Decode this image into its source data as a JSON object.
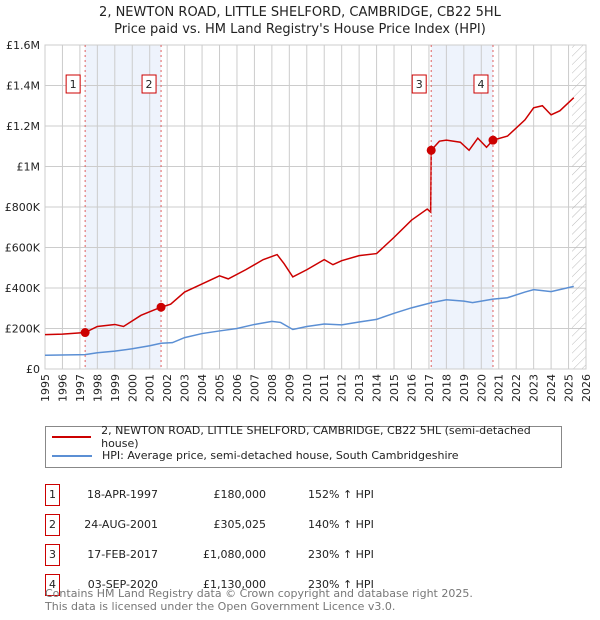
{
  "title": [
    "2, NEWTON ROAD, LITTLE SHELFORD, CAMBRIDGE, CB22 5HL",
    "Price paid vs. HM Land Registry's House Price Index (HPI)"
  ],
  "chart_data": {
    "type": "line",
    "xlim": [
      1995,
      2026
    ],
    "ylim": [
      0,
      1600000
    ],
    "x_ticks": [
      "1995",
      "1996",
      "1997",
      "1998",
      "1999",
      "2000",
      "2001",
      "2002",
      "2003",
      "2004",
      "2005",
      "2006",
      "2007",
      "2008",
      "2009",
      "2010",
      "2011",
      "2012",
      "2013",
      "2014",
      "2015",
      "2016",
      "2017",
      "2018",
      "2019",
      "2020",
      "2021",
      "2022",
      "2023",
      "2024",
      "2025",
      "2026"
    ],
    "y_ticks": [
      {
        "v": 0,
        "label": "£0"
      },
      {
        "v": 200000,
        "label": "£200K"
      },
      {
        "v": 400000,
        "label": "£400K"
      },
      {
        "v": 600000,
        "label": "£600K"
      },
      {
        "v": 800000,
        "label": "£800K"
      },
      {
        "v": 1000000,
        "label": "£1M"
      },
      {
        "v": 1200000,
        "label": "£1.2M"
      },
      {
        "v": 1400000,
        "label": "£1.4M"
      },
      {
        "v": 1600000,
        "label": "£1.6M"
      }
    ],
    "series": [
      {
        "name": "2, NEWTON ROAD, LITTLE SHELFORD, CAMBRIDGE, CB22 5HL (semi-detached house)",
        "color": "#cc0000",
        "points": [
          [
            1995,
            170000
          ],
          [
            1996,
            172000
          ],
          [
            1997.3,
            180000
          ],
          [
            1998,
            210000
          ],
          [
            1999,
            220000
          ],
          [
            1999.5,
            210000
          ],
          [
            2000.5,
            265000
          ],
          [
            2001.2,
            290000
          ],
          [
            2001.65,
            305025
          ],
          [
            2002.2,
            320000
          ],
          [
            2003,
            380000
          ],
          [
            2004,
            420000
          ],
          [
            2005,
            460000
          ],
          [
            2005.5,
            445000
          ],
          [
            2006.5,
            490000
          ],
          [
            2007.5,
            540000
          ],
          [
            2008.3,
            565000
          ],
          [
            2008.7,
            520000
          ],
          [
            2009.2,
            455000
          ],
          [
            2010,
            490000
          ],
          [
            2011,
            540000
          ],
          [
            2011.5,
            515000
          ],
          [
            2012,
            535000
          ],
          [
            2013,
            560000
          ],
          [
            2014,
            570000
          ],
          [
            2015,
            650000
          ],
          [
            2016,
            735000
          ],
          [
            2016.9,
            790000
          ],
          [
            2017.1,
            775000
          ],
          [
            2017.13,
            1080000
          ],
          [
            2017.6,
            1125000
          ],
          [
            2018,
            1130000
          ],
          [
            2018.8,
            1120000
          ],
          [
            2019.3,
            1080000
          ],
          [
            2019.8,
            1140000
          ],
          [
            2020.3,
            1095000
          ],
          [
            2020.67,
            1130000
          ],
          [
            2021.5,
            1150000
          ],
          [
            2022.5,
            1230000
          ],
          [
            2023,
            1290000
          ],
          [
            2023.5,
            1300000
          ],
          [
            2024,
            1255000
          ],
          [
            2024.5,
            1275000
          ],
          [
            2025.3,
            1340000
          ]
        ]
      },
      {
        "name": "HPI: Average price, semi-detached house, South Cambridgeshire",
        "color": "#5b8fd4",
        "points": [
          [
            1995,
            68000
          ],
          [
            1997.3,
            71000
          ],
          [
            1998,
            80000
          ],
          [
            1999,
            88000
          ],
          [
            2000,
            100000
          ],
          [
            2001,
            115000
          ],
          [
            2001.65,
            127000
          ],
          [
            2002.3,
            130000
          ],
          [
            2003,
            155000
          ],
          [
            2004,
            175000
          ],
          [
            2005,
            188000
          ],
          [
            2006,
            200000
          ],
          [
            2007,
            220000
          ],
          [
            2008,
            235000
          ],
          [
            2008.5,
            230000
          ],
          [
            2009.2,
            195000
          ],
          [
            2010,
            210000
          ],
          [
            2011,
            222000
          ],
          [
            2012,
            218000
          ],
          [
            2013,
            232000
          ],
          [
            2014,
            245000
          ],
          [
            2015,
            275000
          ],
          [
            2016,
            302000
          ],
          [
            2017.13,
            327000
          ],
          [
            2018,
            342000
          ],
          [
            2019,
            335000
          ],
          [
            2019.5,
            328000
          ],
          [
            2020.67,
            345000
          ],
          [
            2021.5,
            352000
          ],
          [
            2022.5,
            380000
          ],
          [
            2023,
            392000
          ],
          [
            2024,
            382000
          ],
          [
            2025.3,
            408000
          ]
        ]
      }
    ],
    "sales": [
      {
        "label": "1",
        "year": 1997.3,
        "price": 180000,
        "date": "18-APR-1997",
        "price_text": "£180,000",
        "hpi": "152% ↑ HPI"
      },
      {
        "label": "2",
        "year": 2001.65,
        "price": 305025,
        "date": "24-AUG-2001",
        "price_text": "£305,025",
        "hpi": "140% ↑ HPI"
      },
      {
        "label": "3",
        "year": 2017.13,
        "price": 1080000,
        "date": "17-FEB-2017",
        "price_text": "£1,080,000",
        "hpi": "230% ↑ HPI"
      },
      {
        "label": "4",
        "year": 2020.67,
        "price": 1130000,
        "date": "03-SEP-2020",
        "price_text": "£1,130,000",
        "hpi": "230% ↑ HPI"
      }
    ],
    "forecast_start": 2025.2
  },
  "footer": [
    "Contains HM Land Registry data © Crown copyright and database right 2025.",
    "This data is licensed under the Open Government Licence v3.0."
  ]
}
